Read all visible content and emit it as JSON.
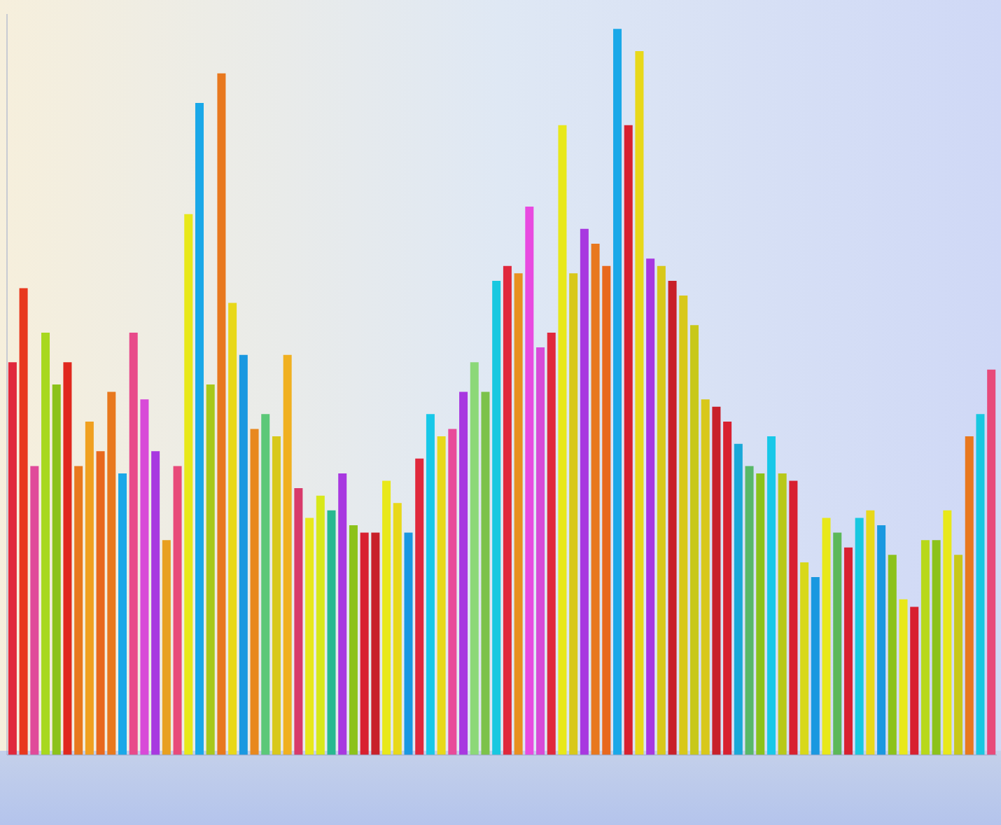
{
  "chart_data": {
    "type": "bar",
    "categories": [
      null,
      null,
      null,
      null,
      null,
      null,
      null,
      null,
      null,
      null,
      null,
      null,
      null,
      null,
      null,
      null,
      null,
      null,
      null,
      null,
      null,
      null,
      null,
      null,
      null,
      null,
      null,
      null,
      null,
      null,
      null,
      null,
      null,
      null,
      null,
      null,
      null,
      null,
      null,
      null,
      null,
      null,
      null,
      null,
      null,
      null,
      null,
      null,
      null,
      null,
      null,
      null,
      null,
      null,
      null,
      null,
      null,
      null,
      null,
      null,
      null,
      null,
      null,
      null,
      null,
      null,
      null,
      null,
      null,
      null,
      null,
      null,
      null,
      null,
      null,
      null,
      null,
      null,
      null,
      null,
      null,
      null,
      null,
      null,
      null,
      null,
      null,
      null,
      null,
      null
    ],
    "values": [
      53,
      63,
      39,
      57,
      50,
      53,
      39,
      45,
      41,
      49,
      38,
      57,
      48,
      41,
      29,
      39,
      73,
      88,
      50,
      92,
      61,
      54,
      44,
      46,
      43,
      54,
      36,
      32,
      35,
      33,
      38,
      31,
      30,
      30,
      37,
      34,
      30,
      40,
      46,
      43,
      44,
      49,
      53,
      49,
      64,
      66,
      65,
      74,
      55,
      57,
      85,
      65,
      71,
      69,
      66,
      98,
      85,
      95,
      67,
      66,
      64,
      62,
      58,
      48,
      47,
      45,
      42,
      39,
      38,
      43,
      38,
      37,
      26,
      24,
      32,
      30,
      28,
      32,
      33,
      31,
      27,
      21,
      20,
      29,
      29,
      33,
      27,
      43,
      46,
      52
    ],
    "colors": [
      "#e0283c",
      "#e8381e",
      "#e04a9a",
      "#a8d81e",
      "#8cc21a",
      "#e0281e",
      "#e8781e",
      "#f0a020",
      "#e8681e",
      "#e8781e",
      "#1aa8e8",
      "#e84a8a",
      "#d84ad8",
      "#a838e0",
      "#e8a020",
      "#e84a7a",
      "#e8e81a",
      "#1aa8e8",
      "#a8c81a",
      "#e8781e",
      "#e8d81a",
      "#1a98e0",
      "#e8881e",
      "#5cc878",
      "#d8c81a",
      "#f0b020",
      "#d83a6a",
      "#e8e81a",
      "#d8e81a",
      "#28b890",
      "#a838e0",
      "#8cc21a",
      "#d82030",
      "#c8202a",
      "#e8e81a",
      "#e8d81a",
      "#1a98e0",
      "#e0283c",
      "#18c8e8",
      "#e8d81a",
      "#e84a9a",
      "#a838e0",
      "#8cd878",
      "#7cc24a",
      "#18c8e0",
      "#e0283c",
      "#e89020",
      "#e84ae0",
      "#d84ad8",
      "#e0283c",
      "#e8e81a",
      "#d8c81a",
      "#a838e0",
      "#e8781e",
      "#e8681e",
      "#1aa8e8",
      "#d82030",
      "#e8d81a",
      "#a838e0",
      "#d8c81a",
      "#c8202a",
      "#d8c81a",
      "#c8c81a",
      "#d8c81a",
      "#c8202a",
      "#d82030",
      "#1aa8d8",
      "#58b868",
      "#8cc21a",
      "#18c8e8",
      "#b8c81a",
      "#d82030",
      "#d8d81a",
      "#1a98e0",
      "#e8e81a",
      "#5cb858",
      "#d82030",
      "#18c8e0",
      "#e8d81a",
      "#1a98e0",
      "#8cc21a",
      "#e8e81a",
      "#d82030",
      "#b8d81a",
      "#8cc21a",
      "#e8e81a",
      "#c8c81a",
      "#e8781e",
      "#18c8e0",
      "#e84a7a"
    ],
    "ylim": [
      0,
      100
    ],
    "grid": false,
    "tick_labels": false
  }
}
